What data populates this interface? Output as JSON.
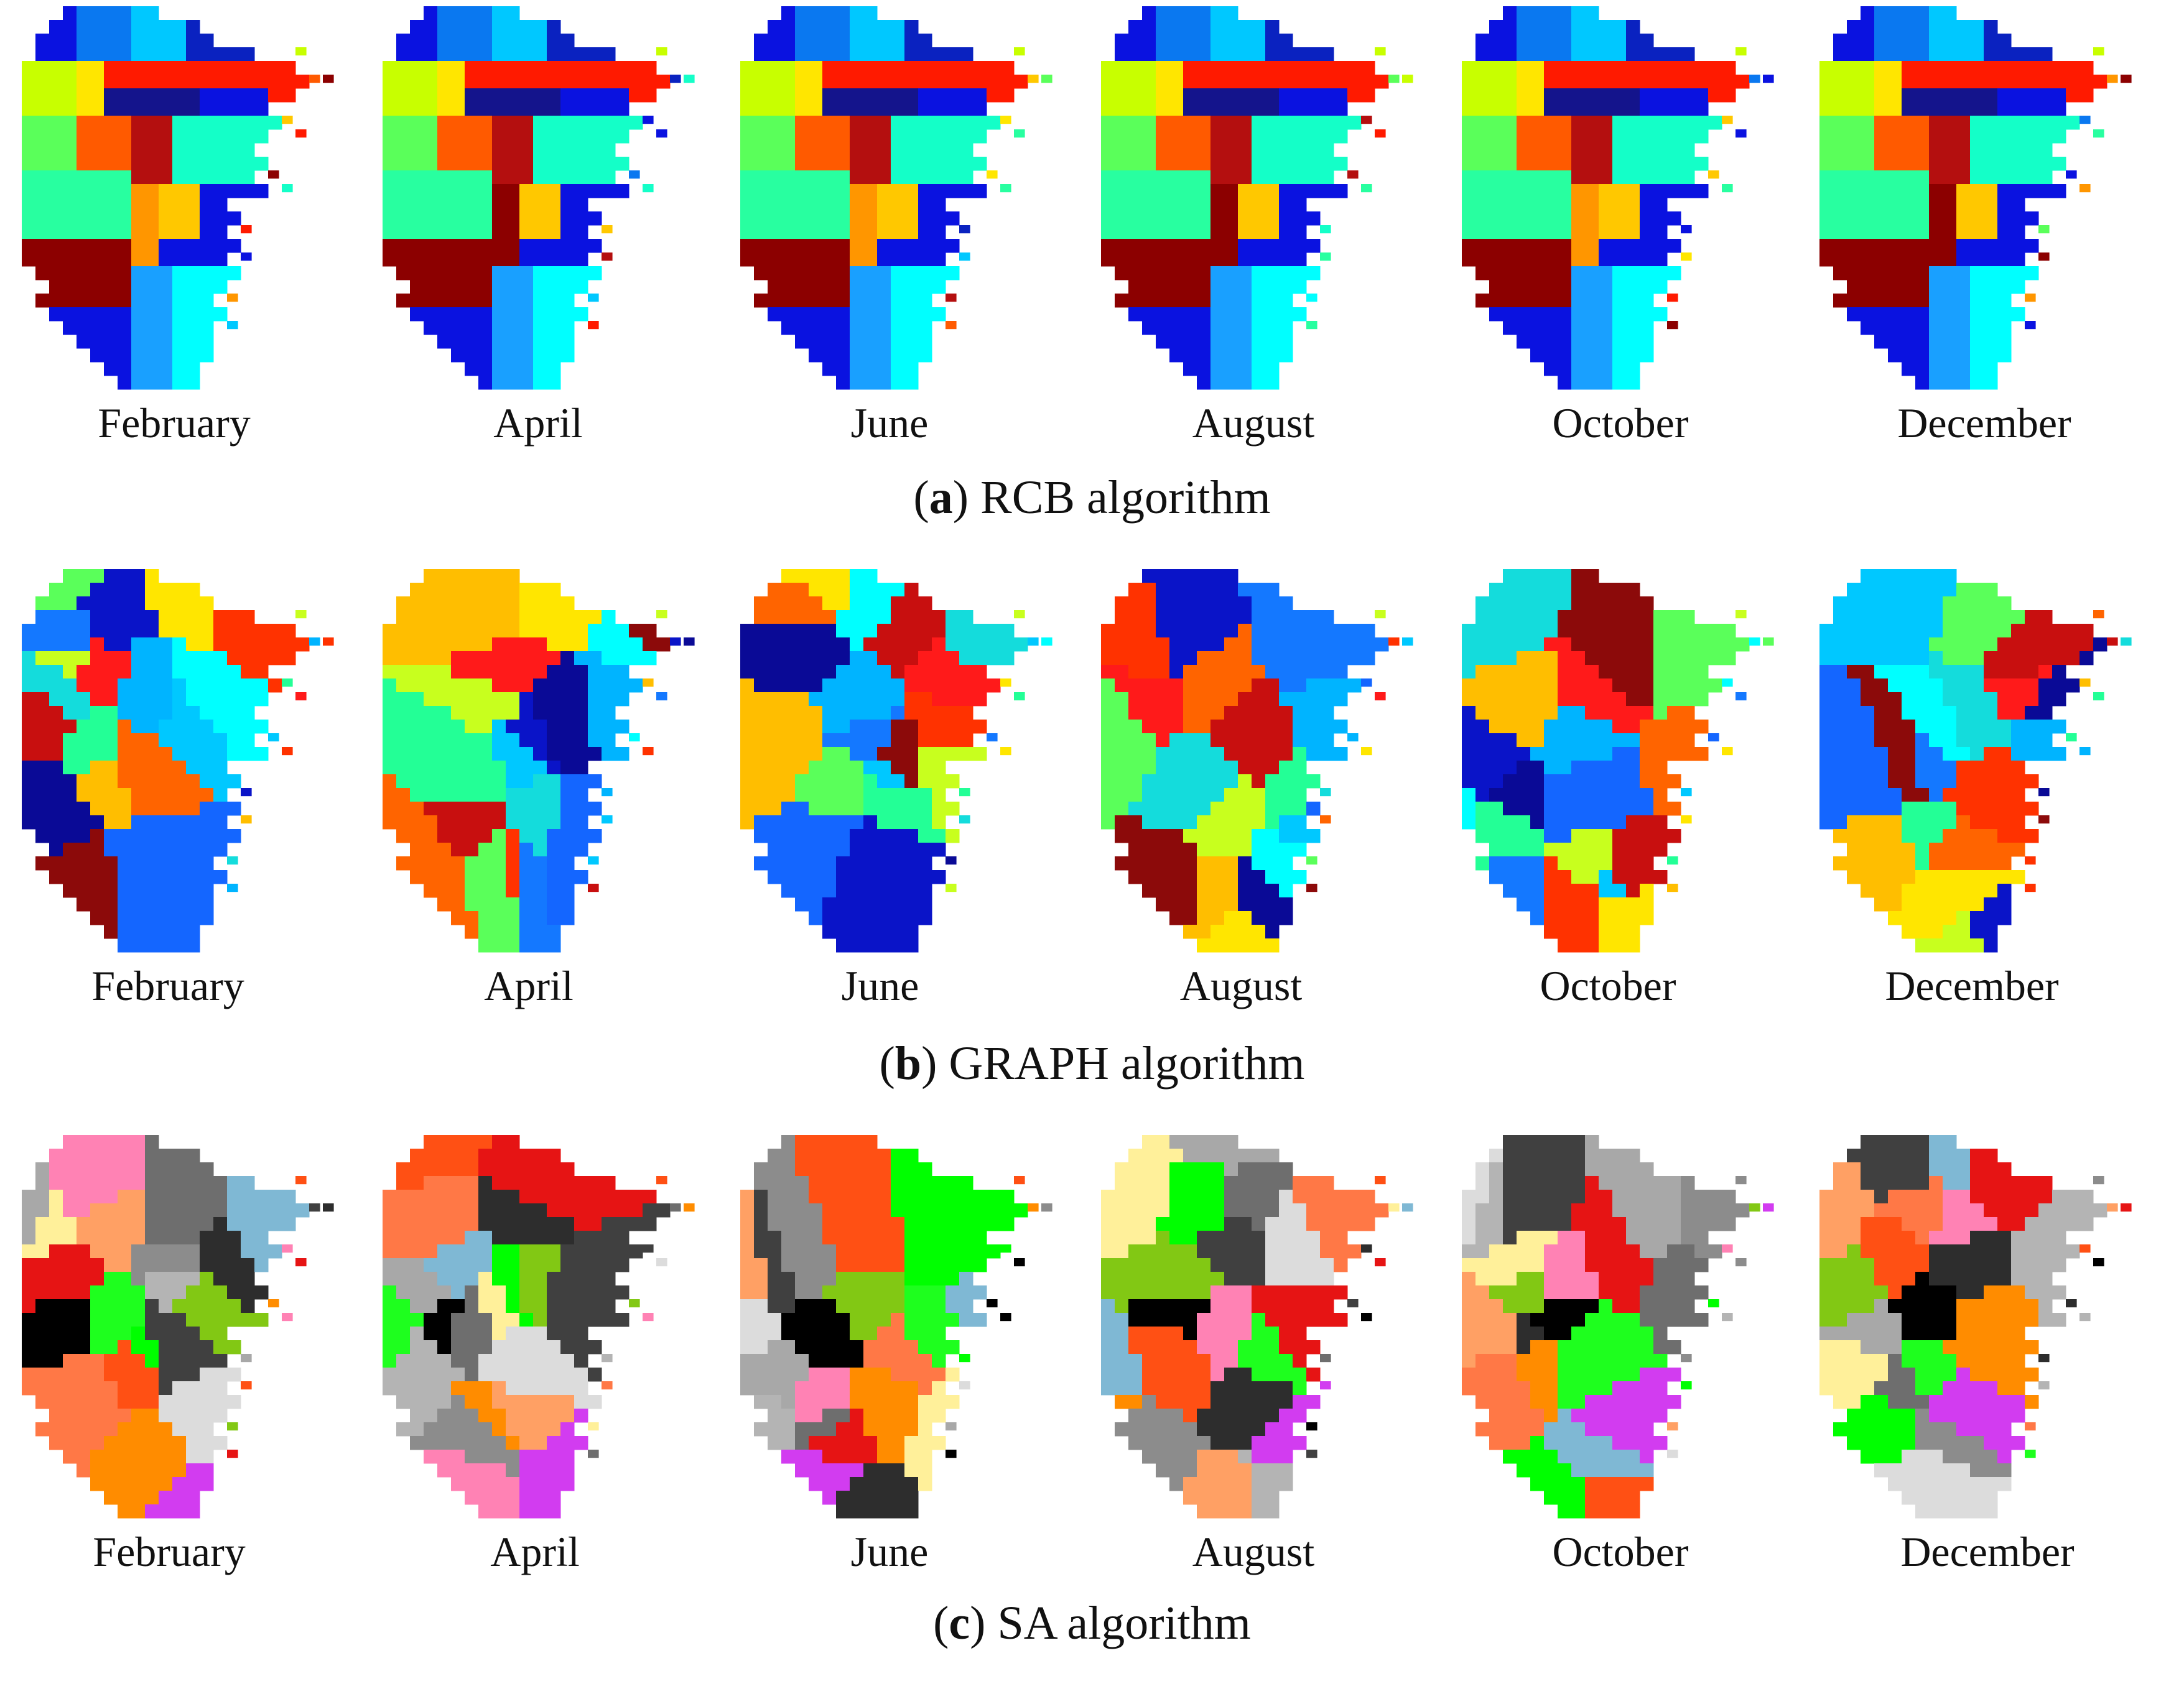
{
  "panels": [
    {
      "letter": "a",
      "title": "RCB algorithm",
      "months": [
        "February",
        "April",
        "June",
        "August",
        "October",
        "December"
      ],
      "palette": [
        "#0a12e0",
        "#0a78f0",
        "#00c8ff",
        "#0a22c0",
        "#c8ff00",
        "#ffe600",
        "#ff1a00",
        "#14148c",
        "#5aff5a",
        "#ff5a00",
        "#b40f0f",
        "#14ffc8",
        "#28ffa0",
        "#ff9600",
        "#ffc800",
        "#8c0000",
        "#19a0ff",
        "#00ffff"
      ]
    },
    {
      "letter": "b",
      "title": "GRAPH algorithm",
      "months": [
        "February",
        "April",
        "June",
        "August",
        "October",
        "December"
      ],
      "palette": [
        "#ff1a1a",
        "#c80f0f",
        "#1466ff",
        "#00c8ff",
        "#c8ff1e",
        "#ff6400",
        "#23ff96",
        "#00ffff",
        "#8c0a0a",
        "#0a14c8",
        "#0a0a96",
        "#ffbe00",
        "#1478ff",
        "#14dcdc",
        "#ff3200",
        "#ffe600",
        "#00b4ff",
        "#5aff5a"
      ]
    },
    {
      "letter": "c",
      "title": "SA algorithm",
      "months": [
        "February",
        "April",
        "June",
        "August",
        "October",
        "December"
      ],
      "palette": [
        "#000000",
        "#b4b4b4",
        "#7fb8d4",
        "#fff09a",
        "#404040",
        "#ff5014",
        "#8c8c8c",
        "#dcdcdc",
        "#ffa064",
        "#00ff00",
        "#ff8c00",
        "#1eff1e",
        "#a8a8a8",
        "#e61414",
        "#2d2d2d",
        "#82c814",
        "#ff7846",
        "#6e6e6e",
        "#d23cf0",
        "#ff82b4"
      ]
    }
  ]
}
